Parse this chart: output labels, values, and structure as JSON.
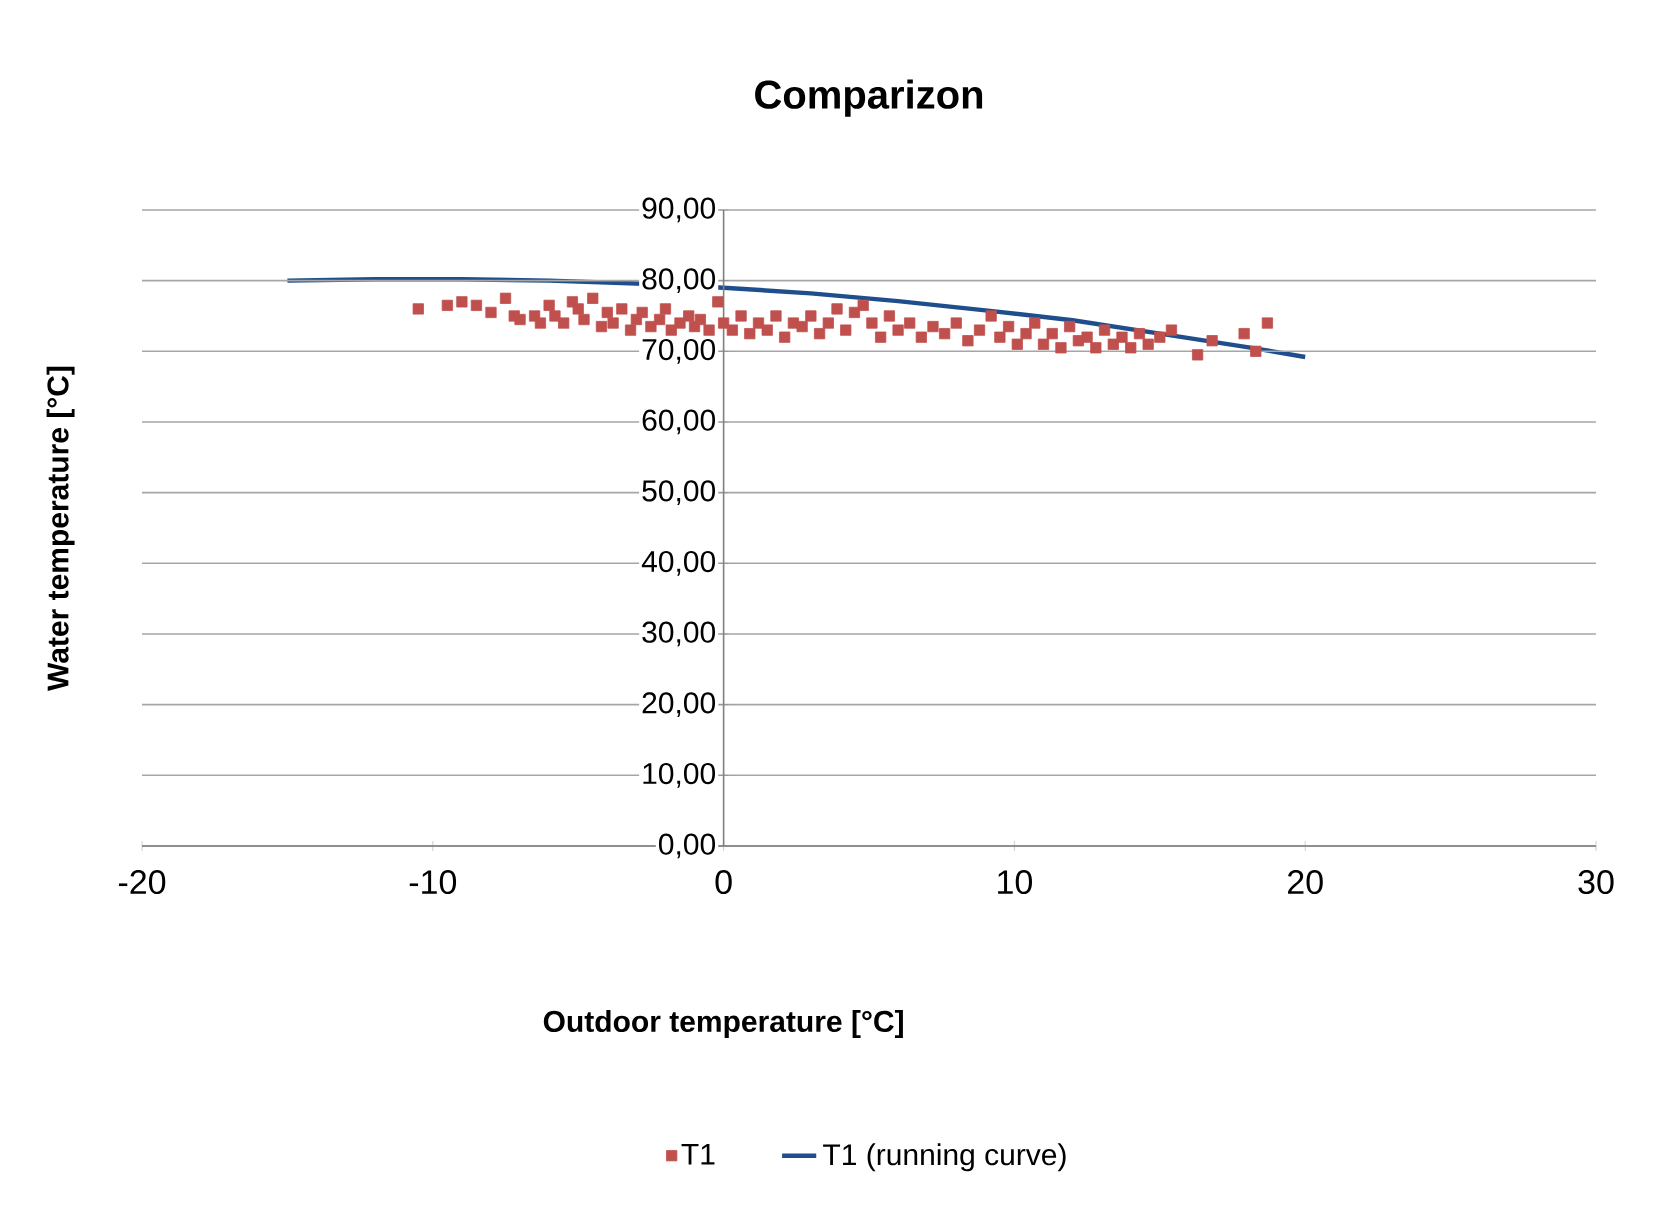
{
  "chart_data": {
    "type": "scatter",
    "title": "Comparizon",
    "xlabel": "Outdoor temperature [°C]",
    "ylabel": "Water temperature [°C]",
    "xlim": [
      -20,
      30
    ],
    "xticks": [
      -20,
      -10,
      0,
      10,
      20,
      30
    ],
    "ylim": [
      0,
      90
    ],
    "yticks": [
      {
        "value": 0,
        "label": "0,00"
      },
      {
        "value": 10,
        "label": "10,00"
      },
      {
        "value": 20,
        "label": "20,00"
      },
      {
        "value": 30,
        "label": "30,00"
      },
      {
        "value": 40,
        "label": "40,00"
      },
      {
        "value": 50,
        "label": "50,00"
      },
      {
        "value": 60,
        "label": "60,00"
      },
      {
        "value": 70,
        "label": "70,00"
      },
      {
        "value": 80,
        "label": "80,00"
      },
      {
        "value": 90,
        "label": "90,00"
      }
    ],
    "grid": "y",
    "legend": "bottom",
    "series": [
      {
        "name": "T1",
        "color": "#c0504d",
        "marker": "square",
        "x": [
          -10.5,
          -9.5,
          -9,
          -8.5,
          -8,
          -7.5,
          -7.2,
          -7,
          -6.5,
          -6.3,
          -6,
          -5.8,
          -5.5,
          -5.2,
          -5,
          -4.8,
          -4.5,
          -4.2,
          -4,
          -3.8,
          -3.5,
          -3.2,
          -3,
          -2.8,
          -2.5,
          -2.2,
          -2,
          -1.8,
          -1.5,
          -1.2,
          -1,
          -0.8,
          -0.5,
          -0.2,
          0,
          0.3,
          0.6,
          0.9,
          1.2,
          1.5,
          1.8,
          2.1,
          2.4,
          2.7,
          3,
          3.3,
          3.6,
          3.9,
          4.2,
          4.5,
          4.8,
          5.1,
          5.4,
          5.7,
          6,
          6.4,
          6.8,
          7.2,
          7.6,
          8,
          8.4,
          8.8,
          9.2,
          9.5,
          9.8,
          10.1,
          10.4,
          10.7,
          11,
          11.3,
          11.6,
          11.9,
          12.2,
          12.5,
          12.8,
          13.1,
          13.4,
          13.7,
          14,
          14.3,
          14.6,
          15,
          15.4,
          16.3,
          16.8,
          17.9,
          18.3,
          18.7
        ],
        "values": [
          76,
          76.5,
          77,
          76.5,
          75.5,
          77.5,
          75,
          74.5,
          75,
          74,
          76.5,
          75,
          74,
          77,
          76,
          74.5,
          77.5,
          73.5,
          75.5,
          74,
          76,
          73,
          74.5,
          75.5,
          73.5,
          74.5,
          76,
          73,
          74,
          75,
          73.5,
          74.5,
          73,
          77,
          74,
          73,
          75,
          72.5,
          74,
          73,
          75,
          72,
          74,
          73.5,
          75,
          72.5,
          74,
          76,
          73,
          75.5,
          76.5,
          74,
          72,
          75,
          73,
          74,
          72,
          73.5,
          72.5,
          74,
          71.5,
          73,
          75,
          72,
          73.5,
          71,
          72.5,
          74,
          71,
          72.5,
          70.5,
          73.5,
          71.5,
          72,
          70.5,
          73,
          71,
          72,
          70.5,
          72.5,
          71,
          72,
          73,
          69.5,
          71.5,
          72.5,
          70,
          74
        ]
      },
      {
        "name": "T1 (running curve)",
        "type": "line",
        "color": "#1f4e8c",
        "marker": "none",
        "line_style": "solid",
        "x": [
          -15,
          -12,
          -9,
          -6,
          -3,
          0,
          3,
          6,
          9,
          12,
          15,
          18,
          20
        ],
        "values": [
          80,
          80.2,
          80.2,
          80,
          79.6,
          79,
          78.2,
          77.1,
          75.8,
          74.4,
          72.5,
          70.6,
          69.2
        ]
      }
    ]
  }
}
